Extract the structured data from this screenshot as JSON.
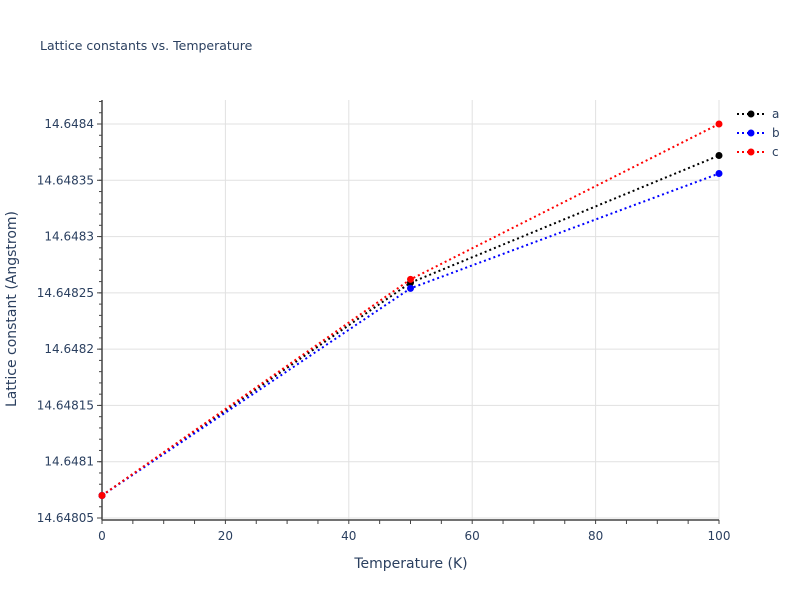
{
  "chart_data": {
    "type": "line",
    "title": "Lattice constants vs. Temperature",
    "xlabel": "Temperature (K)",
    "ylabel": "Lattice constant (Angstrom)",
    "x": [
      0,
      50,
      100
    ],
    "series": [
      {
        "name": "a",
        "color": "#000000",
        "values": [
          14.64807,
          14.648259,
          14.648372
        ]
      },
      {
        "name": "b",
        "color": "#0000ff",
        "values": [
          14.64807,
          14.648254,
          14.648356
        ]
      },
      {
        "name": "c",
        "color": "#ff0000",
        "values": [
          14.64807,
          14.648262,
          14.6484
        ]
      }
    ],
    "xlim": [
      0,
      100
    ],
    "ylim": [
      14.648045,
      14.648422
    ],
    "xticks": [
      0,
      20,
      40,
      60,
      80,
      100
    ],
    "yticks": [
      "14.64805",
      "14.6481",
      "14.64815",
      "14.6482",
      "14.64825",
      "14.6483",
      "14.64835",
      "14.6484"
    ],
    "line_style": "dotted",
    "grid": true,
    "legend_position": "right-top"
  }
}
